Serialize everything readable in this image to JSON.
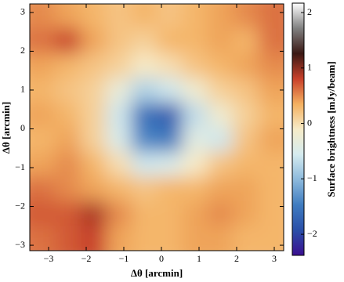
{
  "chart_data": {
    "type": "heatmap",
    "xlabel": "Δθ [arcmin]",
    "ylabel": "Δθ [arcmin]",
    "colorbar_label": "Surface brightness [mJy/beam]",
    "xlim": [
      -3.5,
      3.25
    ],
    "ylim": [
      3.22,
      -3.14
    ],
    "xticks": [
      {
        "value": -3,
        "label": "−3"
      },
      {
        "value": -2,
        "label": "−2"
      },
      {
        "value": -1,
        "label": "−1"
      },
      0,
      1,
      2,
      3
    ],
    "yticks": [
      {
        "value": -3,
        "label": "−3"
      },
      {
        "value": -2,
        "label": "−2"
      },
      {
        "value": -1,
        "label": "−1"
      },
      0,
      1,
      2,
      3
    ],
    "clim": [
      -2.38,
      2.17
    ],
    "cticks": [
      {
        "value": -2,
        "label": "−2"
      },
      {
        "value": -1,
        "label": "−1"
      },
      0,
      1,
      2
    ],
    "colormap": [
      "#3a0f90",
      "#2a4fa8",
      "#3f7cc0",
      "#8cb9dc",
      "#d5ebef",
      "#f6ebc8",
      "#f4b060",
      "#c8402a",
      "#3a1814",
      "#808080",
      "#ffffff"
    ],
    "values": [
      [
        0.5,
        0.4,
        0.3,
        0.2,
        0.3,
        0.2,
        0.3,
        0.4,
        0.5,
        0.6
      ],
      [
        0.6,
        0.8,
        0.4,
        0.2,
        0.1,
        0.3,
        0.3,
        0.4,
        0.3,
        0.6
      ],
      [
        0.4,
        0.3,
        0.2,
        0.1,
        -0.1,
        0.0,
        0.2,
        0.3,
        0.4,
        0.5
      ],
      [
        0.3,
        0.2,
        0.1,
        -0.3,
        -0.8,
        -0.6,
        -0.2,
        0.1,
        0.2,
        0.4
      ],
      [
        0.4,
        0.3,
        0.1,
        -0.6,
        -1.6,
        -1.8,
        -0.7,
        -0.2,
        0.1,
        0.3
      ],
      [
        0.3,
        0.4,
        0.1,
        -0.5,
        -1.4,
        -1.5,
        -0.4,
        -0.6,
        0.2,
        0.4
      ],
      [
        0.4,
        0.5,
        0.3,
        0.0,
        -0.6,
        -0.5,
        -0.1,
        0.2,
        0.3,
        0.3
      ],
      [
        0.6,
        0.5,
        0.4,
        0.3,
        0.2,
        0.3,
        0.3,
        0.4,
        0.4,
        0.3
      ],
      [
        0.7,
        0.7,
        0.9,
        0.5,
        0.3,
        0.3,
        0.4,
        0.5,
        0.4,
        0.3
      ],
      [
        0.6,
        0.7,
        0.8,
        0.4,
        0.3,
        0.3,
        0.4,
        0.4,
        0.3,
        0.3
      ]
    ]
  }
}
